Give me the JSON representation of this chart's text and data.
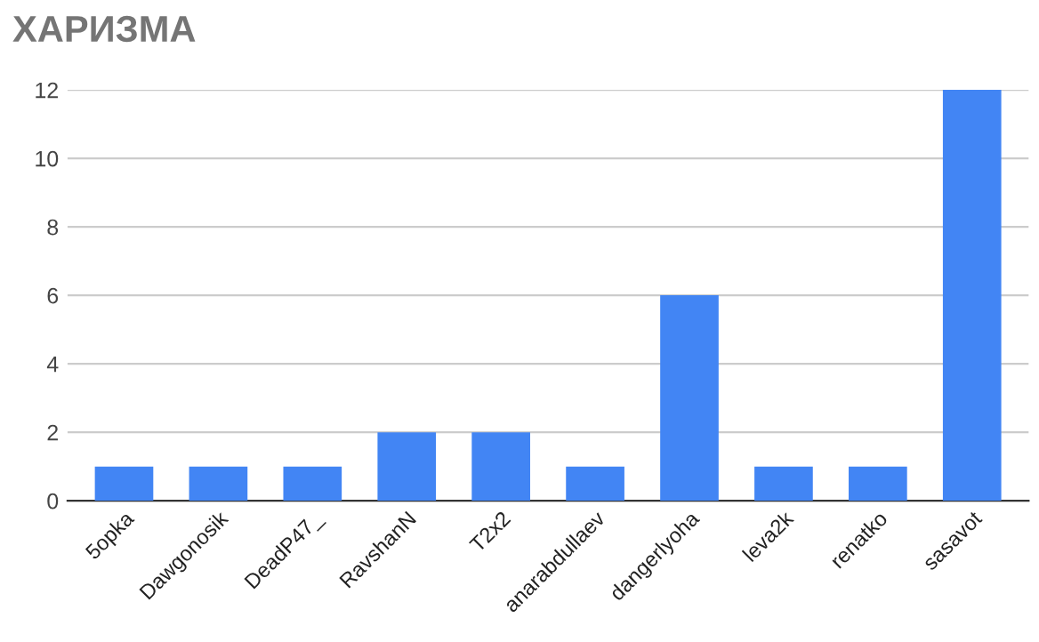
{
  "chart_data": {
    "type": "bar",
    "title": "ХАРИЗМА",
    "categories": [
      "5opka",
      "Dawgonosik",
      "DeadP47_",
      "RavshanN",
      "T2x2",
      "anarabdullaev",
      "dangerlyoha",
      "leva2k",
      "renatko",
      "sasavot"
    ],
    "values": [
      1,
      1,
      1,
      2,
      2,
      1,
      6,
      1,
      1,
      12
    ],
    "color": "#4285f4",
    "ylim": [
      0,
      12
    ],
    "yticks": [
      0,
      2,
      4,
      6,
      8,
      10,
      12
    ],
    "grid": "y"
  }
}
